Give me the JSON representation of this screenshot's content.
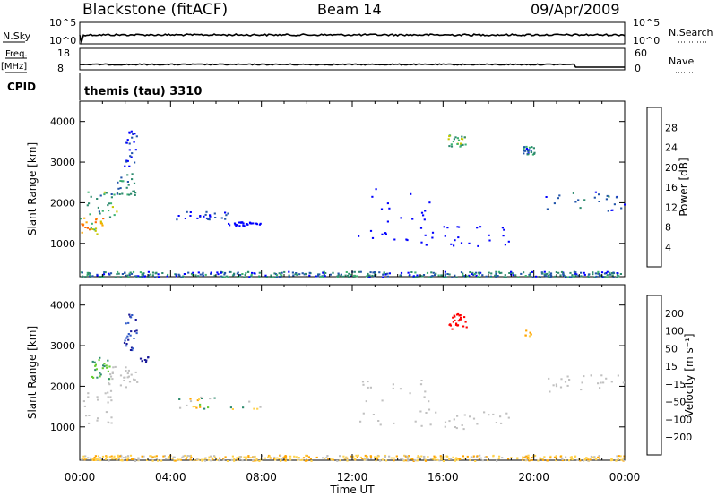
{
  "header": {
    "station": "Blackstone (fitACF)",
    "beam": "Beam 14",
    "date": "09/Apr/2009"
  },
  "strip_labels": {
    "nsky": "N.Sky",
    "nsky_ticks": [
      "10^5",
      "10^0"
    ],
    "nsearch": "N.Search",
    "nsearch_ticks": [
      "10^5",
      "10^0"
    ],
    "freq": "Freq.",
    "freq_unit": "[MHz]",
    "freq_ticks": [
      "18",
      "8"
    ],
    "nave": "Nave",
    "nave_ticks": [
      "60",
      "0"
    ],
    "cpid": "CPID",
    "cpid_value": "themis (tau) 3310"
  },
  "time_axis": {
    "label": "Time UT",
    "ticks": [
      "00:00",
      "04:00",
      "08:00",
      "12:00",
      "16:00",
      "20:00",
      "00:00"
    ]
  },
  "colors": {
    "power": [
      "#0000ff",
      "#2255aa",
      "#2e8b6e",
      "#3cb371",
      "#c8c800",
      "#ffa500",
      "#ff6600",
      "#ff0000"
    ],
    "velocity": [
      "#1a1a99",
      "#2e59c8",
      "#2e8b6e",
      "#66cc33",
      "#c0c0c0",
      "#ffd24d",
      "#ffa500",
      "#ff6600",
      "#ff0000"
    ]
  },
  "chart_data": [
    {
      "type": "scatter",
      "title": "Power",
      "ylabel": "Slant Range [km]",
      "xlabel": "Time UT",
      "ylim": [
        180,
        4500
      ],
      "yticks": [
        "1000",
        "2000",
        "3000",
        "4000"
      ],
      "xrange_hours": [
        0,
        24
      ],
      "colorbar": {
        "label": "Power [dB]",
        "ticks": [
          "28",
          "24",
          "20",
          "16",
          "12",
          "8",
          "4"
        ]
      },
      "clusters": [
        {
          "t": [
            0.0,
            1.0
          ],
          "r": [
            1150,
            1650
          ],
          "lvl": [
            3,
            6
          ]
        },
        {
          "t": [
            0.3,
            1.7
          ],
          "r": [
            1650,
            2300
          ],
          "lvl": [
            1,
            4
          ]
        },
        {
          "t": [
            1.6,
            2.5
          ],
          "r": [
            2200,
            2800
          ],
          "lvl": [
            1,
            3
          ]
        },
        {
          "t": [
            1.9,
            2.5
          ],
          "r": [
            2900,
            3800
          ],
          "lvl": [
            0,
            1
          ]
        },
        {
          "t": [
            4.2,
            6.5
          ],
          "r": [
            1600,
            1800
          ],
          "lvl": [
            0,
            1
          ]
        },
        {
          "t": [
            6.5,
            8.0
          ],
          "r": [
            1450,
            1550
          ],
          "lvl": [
            0,
            0
          ]
        },
        {
          "t": [
            12.0,
            15.5
          ],
          "r": [
            1000,
            2400
          ],
          "lvl": [
            0,
            0
          ]
        },
        {
          "t": [
            15.0,
            19.0
          ],
          "r": [
            950,
            1450
          ],
          "lvl": [
            0,
            0
          ]
        },
        {
          "t": [
            16.2,
            17.0
          ],
          "r": [
            3400,
            3700
          ],
          "lvl": [
            2,
            4
          ]
        },
        {
          "t": [
            19.5,
            20.0
          ],
          "r": [
            3200,
            3400
          ],
          "lvl": [
            0,
            3
          ]
        },
        {
          "t": [
            20.5,
            24.0
          ],
          "r": [
            1800,
            2300
          ],
          "lvl": [
            0,
            2
          ]
        },
        {
          "t": [
            0.0,
            24.0
          ],
          "r": [
            180,
            320
          ],
          "lvl": [
            0,
            3
          ]
        }
      ]
    },
    {
      "type": "scatter",
      "title": "Velocity",
      "ylabel": "Slant Range [km]",
      "xlabel": "Time UT",
      "ylim": [
        180,
        4500
      ],
      "yticks": [
        "1000",
        "2000",
        "3000",
        "4000"
      ],
      "xrange_hours": [
        0,
        24
      ],
      "colorbar": {
        "label": "Velocity [m s⁻¹]",
        "ticks": [
          "200",
          "100",
          "50",
          "15",
          "−15",
          "−50",
          "−100",
          "−200"
        ]
      },
      "clusters": [
        {
          "t": [
            0.0,
            1.4
          ],
          "r": [
            1100,
            2100
          ],
          "lvl": [
            4,
            4
          ]
        },
        {
          "t": [
            0.5,
            1.3
          ],
          "r": [
            2200,
            2750
          ],
          "lvl": [
            2,
            3
          ]
        },
        {
          "t": [
            1.3,
            2.5
          ],
          "r": [
            2000,
            2500
          ],
          "lvl": [
            4,
            4
          ]
        },
        {
          "t": [
            1.9,
            2.5
          ],
          "r": [
            2900,
            3800
          ],
          "lvl": [
            0,
            1
          ]
        },
        {
          "t": [
            2.6,
            3.0
          ],
          "r": [
            2600,
            2750
          ],
          "lvl": [
            0,
            0
          ]
        },
        {
          "t": [
            4.2,
            8.0
          ],
          "r": [
            1450,
            1750
          ],
          "lvl": [
            2,
            6
          ]
        },
        {
          "t": [
            12.0,
            15.5
          ],
          "r": [
            1000,
            2200
          ],
          "lvl": [
            4,
            4
          ]
        },
        {
          "t": [
            15.0,
            19.0
          ],
          "r": [
            950,
            1400
          ],
          "lvl": [
            4,
            4
          ]
        },
        {
          "t": [
            16.2,
            17.0
          ],
          "r": [
            3400,
            3800
          ],
          "lvl": [
            8,
            8
          ]
        },
        {
          "t": [
            19.5,
            19.9
          ],
          "r": [
            3250,
            3400
          ],
          "lvl": [
            5,
            6
          ]
        },
        {
          "t": [
            20.5,
            24.0
          ],
          "r": [
            1850,
            2300
          ],
          "lvl": [
            4,
            4
          ]
        },
        {
          "t": [
            0.0,
            24.0
          ],
          "r": [
            180,
            320
          ],
          "lvl": [
            4,
            6
          ]
        }
      ]
    }
  ]
}
